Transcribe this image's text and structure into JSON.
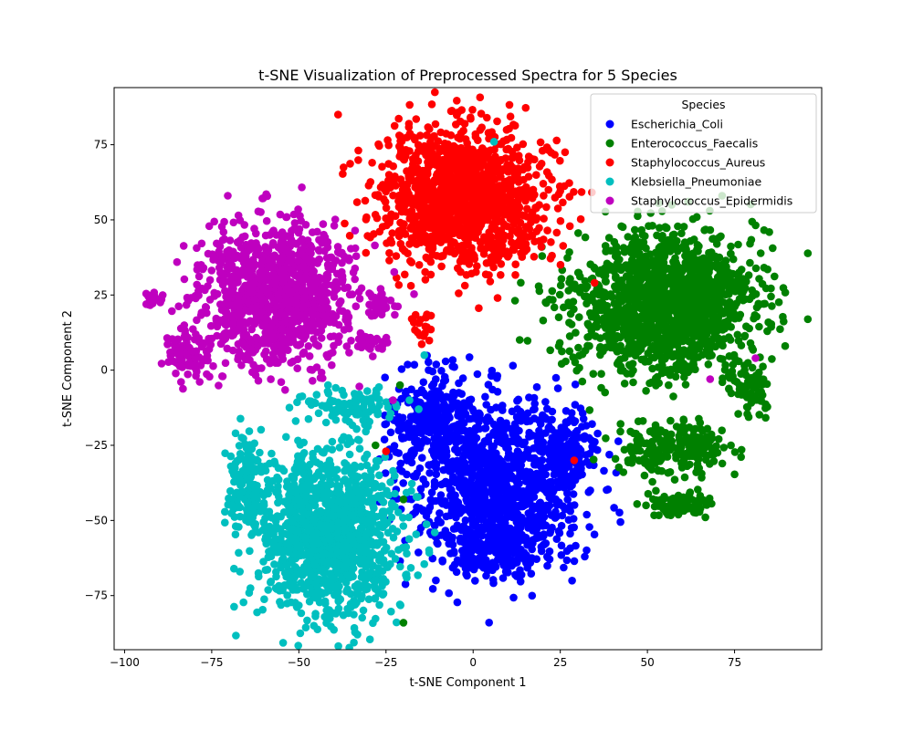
{
  "chart_data": {
    "type": "scatter",
    "title": "t-SNE Visualization of Preprocessed Spectra for 5 Species",
    "xlabel": "t-SNE Component 1",
    "ylabel": "t-SNE Component 2",
    "xlim": [
      -103,
      100
    ],
    "ylim": [
      -93,
      94
    ],
    "xticks": [
      -100,
      -75,
      -50,
      -25,
      0,
      25,
      50,
      75
    ],
    "xtick_labels": [
      "−100",
      "−75",
      "−50",
      "−25",
      "0",
      "25",
      "50",
      "75"
    ],
    "yticks": [
      -75,
      -50,
      -25,
      0,
      25,
      50,
      75
    ],
    "ytick_labels": [
      "−75",
      "−50",
      "−25",
      "0",
      "25",
      "50",
      "75"
    ],
    "grid": false,
    "legend": {
      "title": "Species",
      "placement": "top-right"
    },
    "series": [
      {
        "name": "Escherichia_Coli",
        "color": "#0000ff",
        "clusters": [
          {
            "cx": 7,
            "cy": -38,
            "sx": 12,
            "sy": 14,
            "n": 1000
          },
          {
            "cx": -12,
            "cy": -16,
            "sx": 6,
            "sy": 8,
            "n": 260
          },
          {
            "cx": 26,
            "cy": -28,
            "sx": 5,
            "sy": 7,
            "n": 160
          },
          {
            "cx": 8,
            "cy": -60,
            "sx": 7,
            "sy": 4,
            "n": 160
          }
        ]
      },
      {
        "name": "Enterococcus_Faecalis",
        "color": "#008000",
        "clusters": [
          {
            "cx": 55,
            "cy": 22,
            "sx": 13,
            "sy": 12,
            "n": 1500
          },
          {
            "cx": 58,
            "cy": -26,
            "sx": 8,
            "sy": 4,
            "n": 220
          },
          {
            "cx": 59,
            "cy": -45,
            "sx": 5,
            "sy": 2,
            "n": 90
          },
          {
            "cx": 80,
            "cy": -6,
            "sx": 3,
            "sy": 4,
            "n": 70
          }
        ]
      },
      {
        "name": "Staphylococcus_Aureus",
        "color": "#ff0000",
        "clusters": [
          {
            "cx": -3,
            "cy": 58,
            "sx": 12,
            "sy": 11,
            "n": 1300
          },
          {
            "cx": -14,
            "cy": 13,
            "sx": 2,
            "sy": 4,
            "n": 20
          }
        ]
      },
      {
        "name": "Klebsiella_Pneumoniae",
        "color": "#00bfbf",
        "clusters": [
          {
            "cx": -42,
            "cy": -55,
            "sx": 10,
            "sy": 14,
            "n": 1200
          },
          {
            "cx": -65,
            "cy": -37,
            "sx": 3,
            "sy": 7,
            "n": 140
          },
          {
            "cx": -35,
            "cy": -12,
            "sx": 7,
            "sy": 3,
            "n": 110
          }
        ]
      },
      {
        "name": "Staphylococcus_Epidermidis",
        "color": "#bf00bf",
        "clusters": [
          {
            "cx": -57,
            "cy": 25,
            "sx": 11,
            "sy": 11,
            "n": 1100
          },
          {
            "cx": -82,
            "cy": 5,
            "sx": 3,
            "sy": 4,
            "n": 90
          },
          {
            "cx": -92,
            "cy": 24,
            "sx": 1.2,
            "sy": 1.5,
            "n": 25
          },
          {
            "cx": -27,
            "cy": 22,
            "sx": 2,
            "sy": 2,
            "n": 45
          },
          {
            "cx": -30,
            "cy": 9,
            "sx": 4,
            "sy": 1.5,
            "n": 25
          }
        ]
      }
    ],
    "outliers": [
      {
        "series": "Enterococcus_Faecalis",
        "x": -20,
        "y": -84
      },
      {
        "series": "Enterococcus_Faecalis",
        "x": -20,
        "y": -43
      },
      {
        "series": "Enterococcus_Faecalis",
        "x": -28,
        "y": -25
      },
      {
        "series": "Enterococcus_Faecalis",
        "x": -21,
        "y": -5
      },
      {
        "series": "Staphylococcus_Aureus",
        "x": 29,
        "y": -30
      },
      {
        "series": "Staphylococcus_Aureus",
        "x": -25,
        "y": -27
      },
      {
        "series": "Staphylococcus_Aureus",
        "x": 7,
        "y": 24
      },
      {
        "series": "Klebsiella_Pneumoniae",
        "x": -11,
        "y": -54
      },
      {
        "series": "Klebsiella_Pneumoniae",
        "x": 6,
        "y": 76
      },
      {
        "series": "Klebsiella_Pneumoniae",
        "x": -14,
        "y": 5
      },
      {
        "series": "Staphylococcus_Epidermidis",
        "x": 68,
        "y": -3
      },
      {
        "series": "Staphylococcus_Epidermidis",
        "x": 81,
        "y": 4
      },
      {
        "series": "Staphylococcus_Epidermidis",
        "x": -23,
        "y": -10
      }
    ]
  }
}
